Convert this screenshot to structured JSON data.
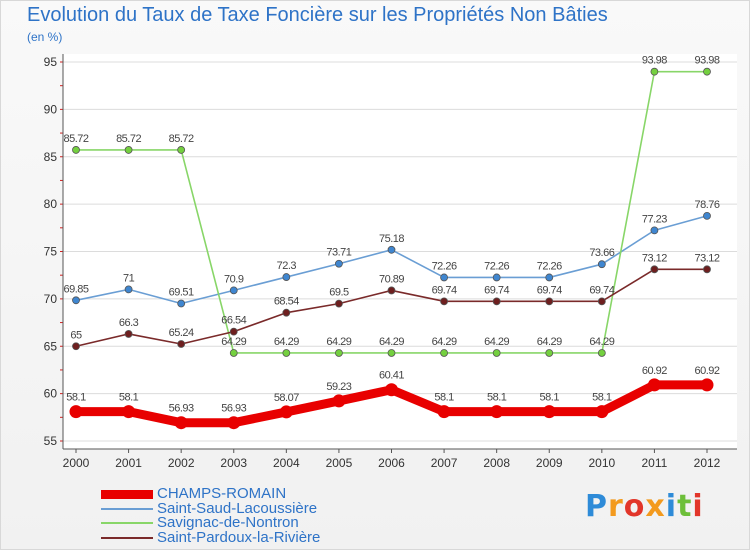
{
  "title": "Evolution du Taux de Taxe Foncière sur les Propriétés Non Bâties",
  "unit": "(en %)",
  "logo": "Proxiti",
  "colors": {
    "title": "#2e73c7",
    "axis": "#555555",
    "grid": "#dcdcdc",
    "tick_mark": "#d22020"
  },
  "chart_data": {
    "type": "line",
    "title": "Evolution du Taux de Taxe Foncière sur les Propriétés Non Bâties",
    "ylabel": "(en %)",
    "xlabel": "",
    "ylim": [
      55,
      95
    ],
    "yticks": [
      55,
      60,
      65,
      70,
      75,
      80,
      85,
      90,
      95
    ],
    "grid": true,
    "legend_position": "bottom-left",
    "x": [
      "2000",
      "2001",
      "2002",
      "2003",
      "2004",
      "2005",
      "2006",
      "2007",
      "2008",
      "2009",
      "2010",
      "2011",
      "2012"
    ],
    "series": [
      {
        "name": "CHAMPS-ROMAIN",
        "color": "#e80000",
        "marker": "#e80000",
        "values": [
          58.1,
          58.1,
          56.93,
          56.93,
          58.07,
          59.23,
          60.41,
          58.1,
          58.1,
          58.1,
          58.1,
          60.92,
          60.92
        ],
        "labels": [
          "58.1",
          "58.1",
          "56.93",
          "56.93",
          "58.07",
          "59.23",
          "60.41",
          "58.1",
          "58.1",
          "58.1",
          "58.1",
          "60.92",
          "60.92"
        ]
      },
      {
        "name": "Saint-Saud-Lacoussière",
        "color": "#6a9ed4",
        "marker": "#3f86d0",
        "values": [
          69.85,
          71,
          69.51,
          70.9,
          72.3,
          73.71,
          75.18,
          72.26,
          72.26,
          72.26,
          73.66,
          77.23,
          78.76
        ],
        "labels": [
          "69.85",
          "71",
          "69.51",
          "70.9",
          "72.3",
          "73.71",
          "75.18",
          "72.26",
          "72.26",
          "72.26",
          "73.66",
          "77.23",
          "78.76"
        ]
      },
      {
        "name": "Savignac-de-Nontron",
        "color": "#88d668",
        "marker": "#74d03f",
        "values": [
          85.72,
          85.72,
          85.72,
          64.29,
          64.29,
          64.29,
          64.29,
          64.29,
          64.29,
          64.29,
          64.29,
          93.98,
          93.98
        ],
        "labels": [
          "85.72",
          "85.72",
          "85.72",
          "64.29",
          "64.29",
          "64.29",
          "64.29",
          "64.29",
          "64.29",
          "64.29",
          "64.29",
          "93.98",
          "93.98"
        ]
      },
      {
        "name": "Saint-Pardoux-la-Rivière",
        "color": "#7a2a2a",
        "marker": "#6e1f1f",
        "values": [
          65,
          66.3,
          65.24,
          66.54,
          68.54,
          69.5,
          70.89,
          69.74,
          69.74,
          69.74,
          69.74,
          73.12,
          73.12
        ],
        "labels": [
          "65",
          "66.3",
          "65.24",
          "66.54",
          "68.54",
          "69.5",
          "70.89",
          "69.74",
          "69.74",
          "69.74",
          "69.74",
          "73.12",
          "73.12"
        ]
      }
    ]
  }
}
